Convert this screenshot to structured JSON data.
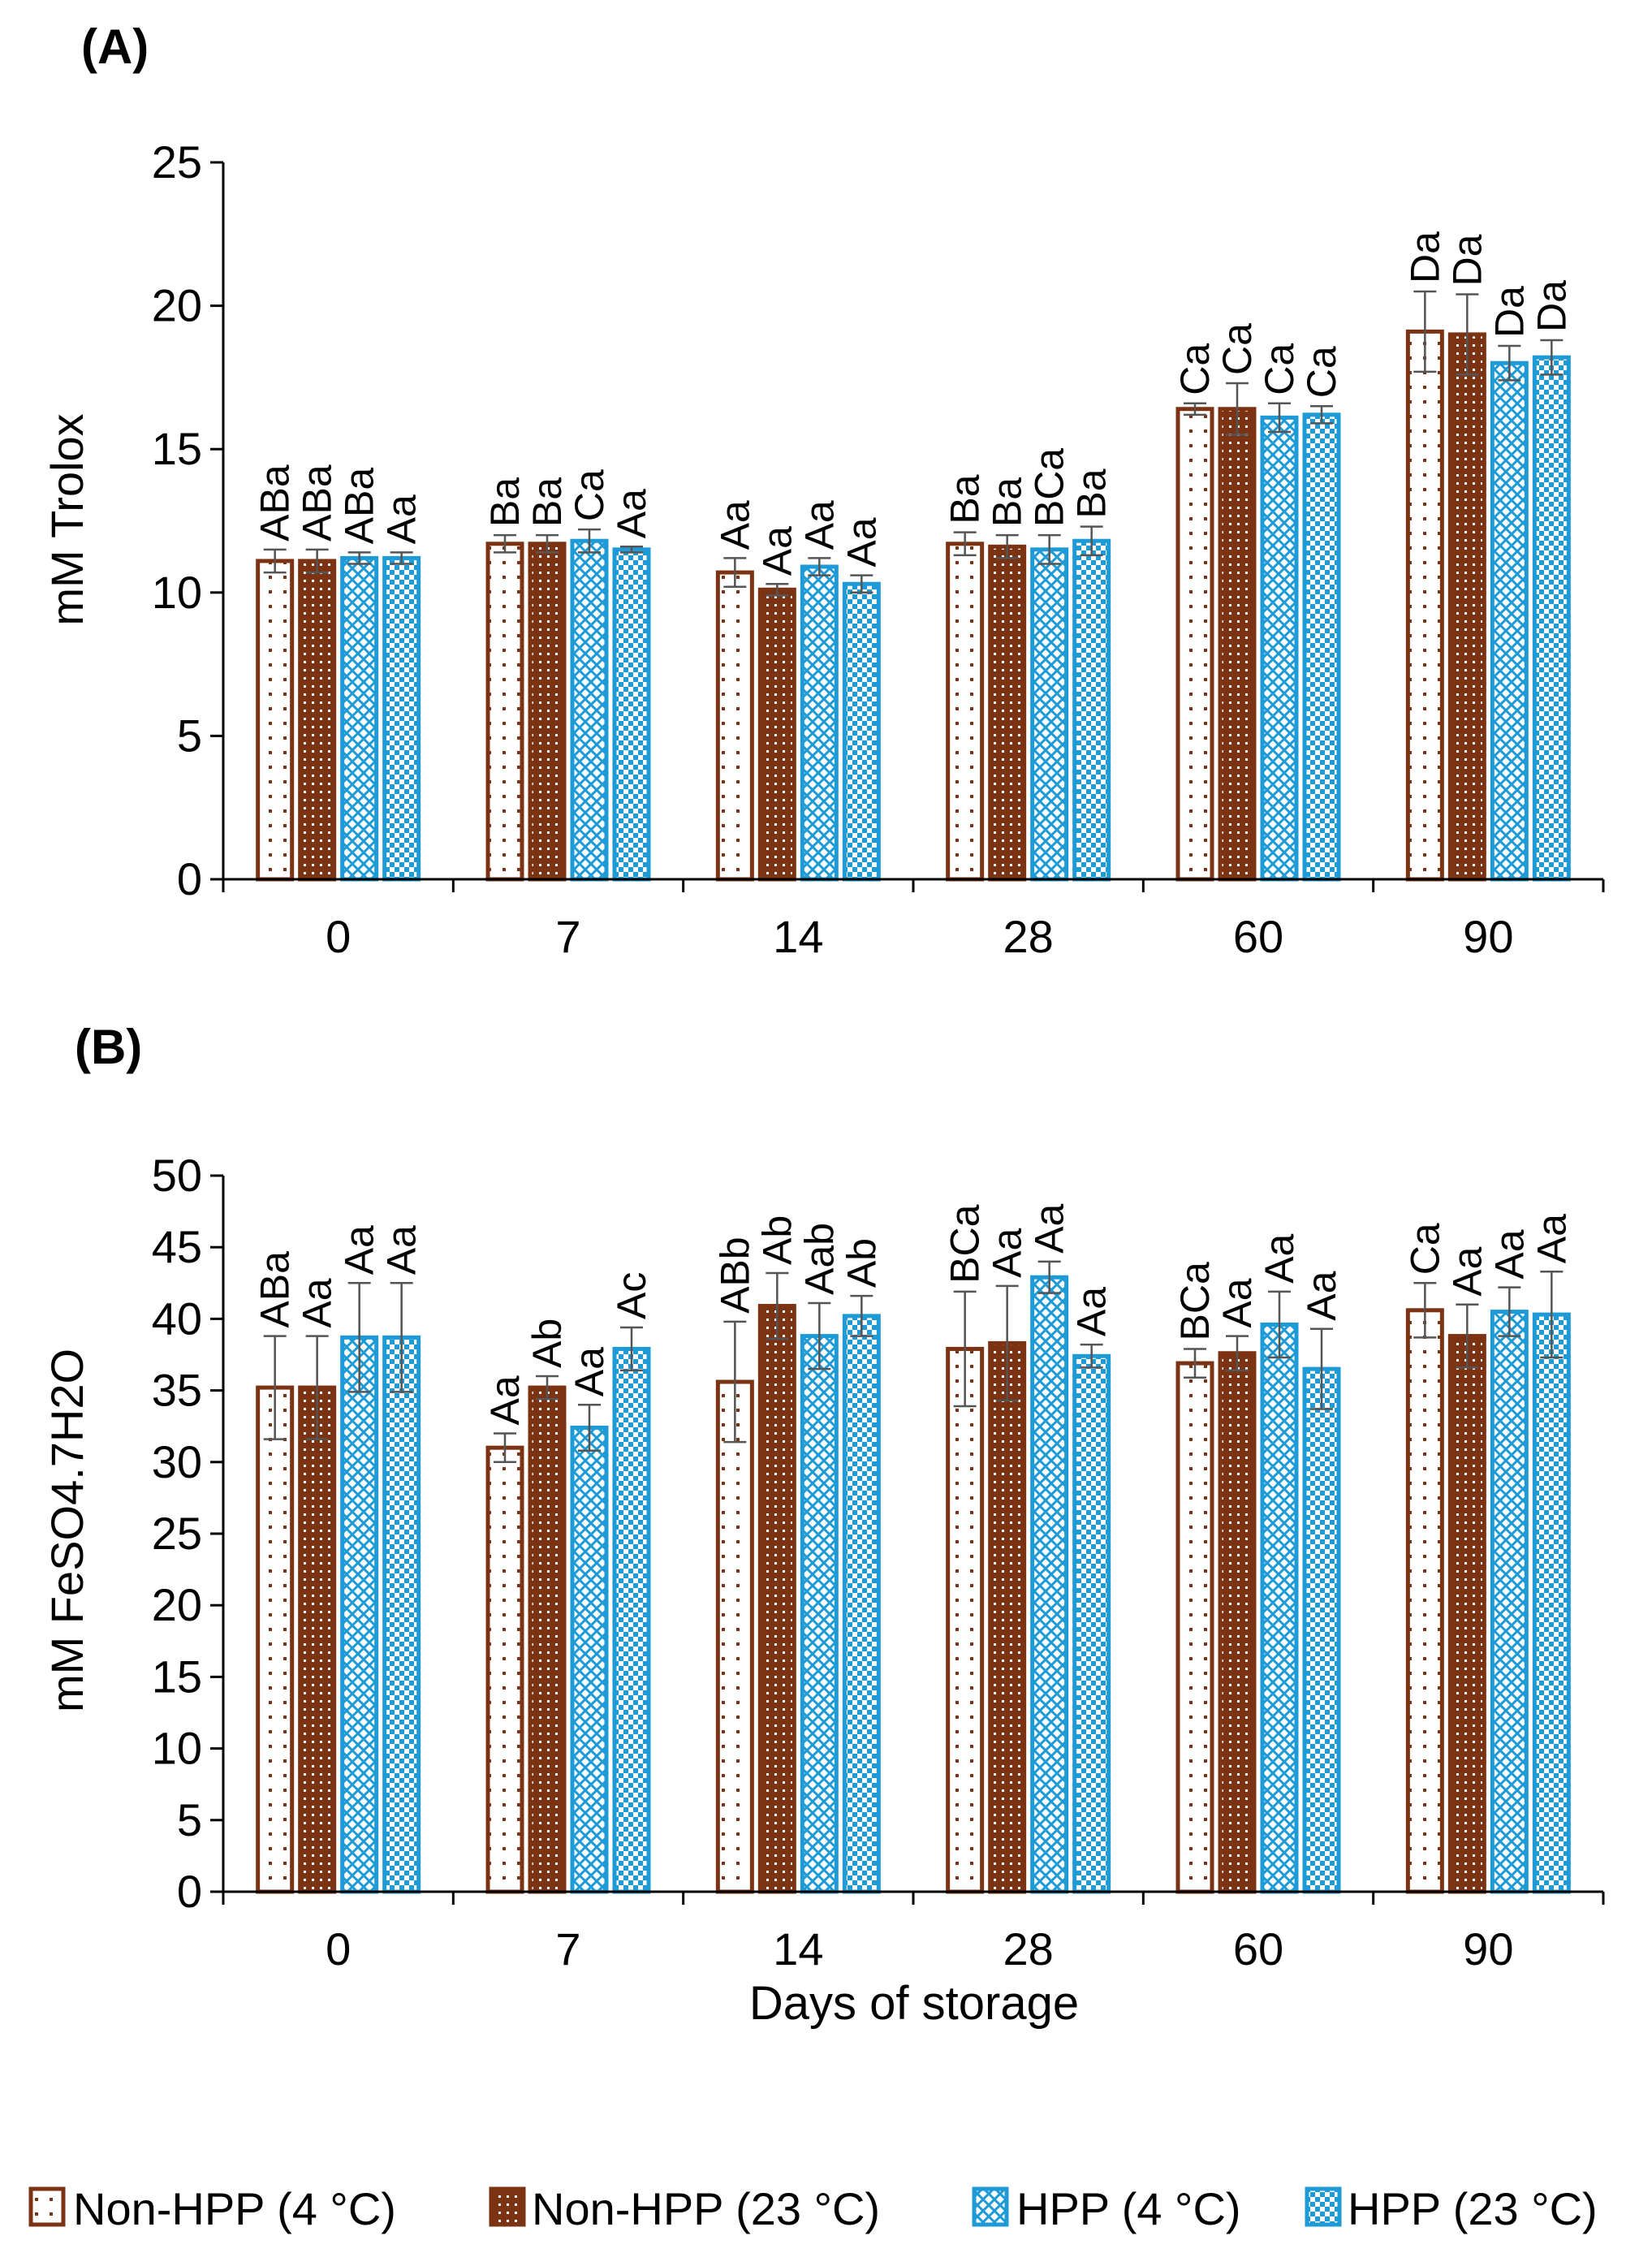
{
  "chart_data": [
    {
      "type": "bar",
      "panel": "(A)",
      "ylabel": "mM Trolox",
      "xlabel": "",
      "ylim": [
        0,
        25
      ],
      "yticks": [
        0,
        5,
        10,
        15,
        20,
        25
      ],
      "categories": [
        "0",
        "7",
        "14",
        "28",
        "60",
        "90"
      ],
      "series": [
        {
          "name": "Non-HPP (4 °C)",
          "values": [
            11.1,
            11.7,
            10.7,
            11.7,
            16.4,
            19.1
          ],
          "errors": [
            0.4,
            0.3,
            0.5,
            0.4,
            0.2,
            1.4
          ],
          "letters": [
            "ABa",
            "Ba",
            "Aa",
            "Ba",
            "Ca",
            "Da"
          ]
        },
        {
          "name": "Non-HPP (23 °C)",
          "values": [
            11.1,
            11.7,
            10.1,
            11.6,
            16.4,
            19.0
          ],
          "errors": [
            0.4,
            0.3,
            0.2,
            0.4,
            0.9,
            1.4
          ],
          "letters": [
            "ABa",
            "Ba",
            "Aa",
            "Ba",
            "Ca",
            "Da"
          ]
        },
        {
          "name": "HPP (4 °C)",
          "values": [
            11.2,
            11.8,
            10.9,
            11.5,
            16.1,
            18.0
          ],
          "errors": [
            0.2,
            0.4,
            0.3,
            0.5,
            0.5,
            0.6
          ],
          "letters": [
            "ABa",
            "Ca",
            "Aa",
            "BCa",
            "Ca",
            "Da"
          ]
        },
        {
          "name": "HPP (23 °C)",
          "values": [
            11.2,
            11.5,
            10.3,
            11.8,
            16.2,
            18.2
          ],
          "errors": [
            0.2,
            0.1,
            0.3,
            0.5,
            0.3,
            0.6
          ],
          "letters": [
            "Aa",
            "Aa",
            "Aa",
            "Ba",
            "Ca",
            "Da"
          ]
        }
      ]
    },
    {
      "type": "bar",
      "panel": "(B)",
      "ylabel": "mM FeSO4.7H2O",
      "xlabel": "Days of storage",
      "ylim": [
        0,
        50
      ],
      "yticks": [
        0,
        5,
        10,
        15,
        20,
        25,
        30,
        35,
        40,
        45,
        50
      ],
      "categories": [
        "0",
        "7",
        "14",
        "28",
        "60",
        "90"
      ],
      "series": [
        {
          "name": "Non-HPP (4 °C)",
          "values": [
            35.2,
            31.0,
            35.6,
            37.9,
            36.9,
            40.6
          ],
          "errors": [
            3.6,
            1.0,
            4.2,
            4.0,
            1.0,
            1.9
          ],
          "letters": [
            "ABa",
            "Aa",
            "ABb",
            "BCa",
            "BCa",
            "Ca"
          ]
        },
        {
          "name": "Non-HPP (23 °C)",
          "values": [
            35.2,
            35.2,
            40.9,
            38.3,
            37.6,
            38.8
          ],
          "errors": [
            3.6,
            0.8,
            2.3,
            4.0,
            1.2,
            2.2
          ],
          "letters": [
            "Aa",
            "Ab",
            "Ab",
            "Aa",
            "Aa",
            "Aa"
          ]
        },
        {
          "name": "HPP (4 °C)",
          "values": [
            38.7,
            32.4,
            38.8,
            42.9,
            39.6,
            40.5
          ],
          "errors": [
            3.8,
            1.6,
            2.3,
            1.1,
            2.3,
            1.7
          ],
          "letters": [
            "Aa",
            "Aa",
            "Aab",
            "Aa",
            "Aa",
            "Aa"
          ]
        },
        {
          "name": "HPP (23 °C)",
          "values": [
            38.7,
            37.9,
            40.2,
            37.4,
            36.5,
            40.3
          ],
          "errors": [
            3.8,
            1.5,
            1.4,
            0.8,
            2.8,
            3.0
          ],
          "letters": [
            "Aa",
            "Ac",
            "Ab",
            "Aa",
            "Aa",
            "Aa"
          ]
        }
      ]
    }
  ],
  "legend": [
    {
      "label": "Non-HPP (4 °C)"
    },
    {
      "label": "Non-HPP (23 °C)"
    },
    {
      "label": "HPP (4 °C)"
    },
    {
      "label": "HPP (23 °C)"
    }
  ],
  "colors": {
    "brown": "#7B3313",
    "blue": "#1E9AD6",
    "axis": "#000000",
    "error": "#555555"
  }
}
